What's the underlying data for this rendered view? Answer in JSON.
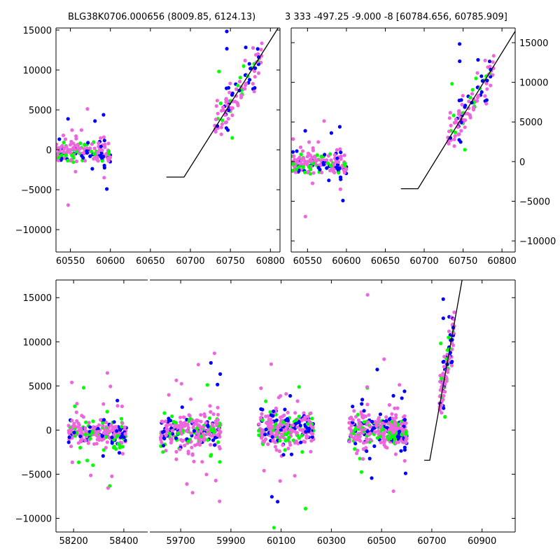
{
  "titles": {
    "left": "BLG38K0706.000656 (8009.85, 6124.13)",
    "right": "3 333 -497.25 -9.000 -8 [60784.656, 60785.909]"
  },
  "chart_data": [
    {
      "id": "top-left",
      "type": "scatter",
      "title": "BLG38K0706.000656 (8009.85, 6124.13)",
      "xlim": [
        60532,
        60812
      ],
      "ylim": [
        -12800,
        15260
      ],
      "xticks": [
        60550,
        60600,
        60650,
        60700,
        60750,
        60800
      ],
      "yticks": [
        -10000,
        -5000,
        0,
        5000,
        10000,
        15000
      ],
      "ytick_side": "left"
    },
    {
      "id": "top-right",
      "type": "scatter",
      "title": "3 333 -497.25 -9.000 -8 [60784.656, 60785.909]",
      "xlim": [
        60529,
        60817
      ],
      "ylim": [
        -11400,
        16850
      ],
      "xticks": [
        60550,
        60600,
        60650,
        60700,
        60750,
        60800
      ],
      "yticks": [
        -10000,
        -5000,
        0,
        5000,
        10000,
        15000
      ],
      "ytick_side": "right"
    },
    {
      "id": "bottom",
      "type": "scatter",
      "broken_x_axis": true,
      "xlim_segments": [
        [
          58130,
          58495
        ],
        [
          59577,
          61032
        ]
      ],
      "xticks_segments": [
        [
          58200,
          58400
        ],
        [
          59700,
          59900,
          60100,
          60300,
          60500,
          60700,
          60900
        ]
      ],
      "ylim": [
        -11550,
        17000
      ],
      "yticks": [
        -10000,
        -5000,
        0,
        5000,
        10000,
        15000
      ],
      "ytick_side": "left"
    }
  ],
  "series_colors": {
    "band_1": "#0000ff",
    "band_2": "#00ff00",
    "band_3": "#ee66dd"
  },
  "model_line": {
    "x": [
      60670,
      60692,
      60830
    ],
    "y": [
      -3420,
      -3420,
      18500
    ],
    "color": "#000000"
  },
  "observing_seasons": [
    {
      "x_range": [
        58180,
        58410
      ],
      "center": -300,
      "spread": 700,
      "count": 260
    },
    {
      "x_range": [
        59620,
        59860
      ],
      "center": -100,
      "spread": 900,
      "count": 300
    },
    {
      "x_range": [
        60010,
        60230
      ],
      "center": 100,
      "spread": 900,
      "count": 300
    },
    {
      "x_range": [
        60370,
        60600
      ],
      "center": 0,
      "spread": 900,
      "count": 300
    },
    {
      "x_range": [
        60530,
        60600
      ],
      "center": -500,
      "spread": 600,
      "count": 90
    },
    {
      "x_range": [
        60730,
        60790
      ],
      "follows_model": true,
      "spread": 1400,
      "count": 110
    }
  ]
}
